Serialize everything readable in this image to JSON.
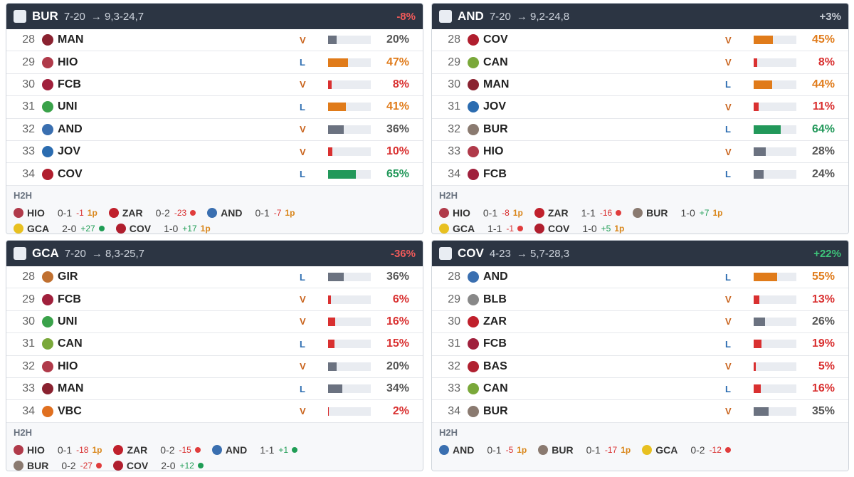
{
  "panels": [
    {
      "team": "BUR",
      "record": "7-20",
      "projection": "→ 9,3-24,7",
      "change": "-8%",
      "change_color": "#f05a5a",
      "rows": [
        {
          "round": 28,
          "team": "MAN",
          "venue": "V",
          "pct": 20,
          "pct_label": "20%"
        },
        {
          "round": 29,
          "team": "HIO",
          "venue": "L",
          "pct": 47,
          "pct_label": "47%"
        },
        {
          "round": 30,
          "team": "FCB",
          "venue": "V",
          "pct": 8,
          "pct_label": "8%"
        },
        {
          "round": 31,
          "team": "UNI",
          "venue": "L",
          "pct": 41,
          "pct_label": "41%"
        },
        {
          "round": 32,
          "team": "AND",
          "venue": "V",
          "pct": 36,
          "pct_label": "36%"
        },
        {
          "round": 33,
          "team": "JOV",
          "venue": "V",
          "pct": 10,
          "pct_label": "10%"
        },
        {
          "round": 34,
          "team": "COV",
          "venue": "L",
          "pct": 65,
          "pct_label": "65%"
        }
      ],
      "h2h_label": "H2H",
      "h2h": [
        [
          {
            "team": "HIO",
            "score": "0-1",
            "diff": "-1",
            "extra": "1p"
          },
          {
            "team": "ZAR",
            "score": "0-2",
            "diff": "-23",
            "dot": "#e03c3c"
          },
          {
            "team": "AND",
            "score": "0-1",
            "diff": "-7",
            "extra": "1p"
          }
        ],
        [
          {
            "team": "GCA",
            "score": "2-0",
            "diff": "+27",
            "dot": "#1f9d55"
          },
          {
            "team": "COV",
            "score": "1-0",
            "diff": "+17",
            "extra": "1p"
          }
        ]
      ]
    },
    {
      "team": "AND",
      "record": "7-20",
      "projection": "→ 9,2-24,8",
      "change": "+3%",
      "change_color": "#c9ced6",
      "rows": [
        {
          "round": 28,
          "team": "COV",
          "venue": "V",
          "pct": 45,
          "pct_label": "45%"
        },
        {
          "round": 29,
          "team": "CAN",
          "venue": "V",
          "pct": 8,
          "pct_label": "8%"
        },
        {
          "round": 30,
          "team": "MAN",
          "venue": "L",
          "pct": 44,
          "pct_label": "44%"
        },
        {
          "round": 31,
          "team": "JOV",
          "venue": "V",
          "pct": 11,
          "pct_label": "11%"
        },
        {
          "round": 32,
          "team": "BUR",
          "venue": "L",
          "pct": 64,
          "pct_label": "64%"
        },
        {
          "round": 33,
          "team": "HIO",
          "venue": "V",
          "pct": 28,
          "pct_label": "28%"
        },
        {
          "round": 34,
          "team": "FCB",
          "venue": "L",
          "pct": 24,
          "pct_label": "24%"
        }
      ],
      "h2h_label": "H2H",
      "h2h": [
        [
          {
            "team": "HIO",
            "score": "0-1",
            "diff": "-8",
            "extra": "1p"
          },
          {
            "team": "ZAR",
            "score": "1-1",
            "diff": "-16",
            "dot": "#e03c3c"
          },
          {
            "team": "BUR",
            "score": "1-0",
            "diff": "+7",
            "extra": "1p"
          }
        ],
        [
          {
            "team": "GCA",
            "score": "1-1",
            "diff": "-1",
            "dot": "#e03c3c"
          },
          {
            "team": "COV",
            "score": "1-0",
            "diff": "+5",
            "extra": "1p"
          }
        ]
      ]
    },
    {
      "team": "GCA",
      "record": "7-20",
      "projection": "→ 8,3-25,7",
      "change": "-36%",
      "change_color": "#f05a5a",
      "rows": [
        {
          "round": 28,
          "team": "GIR",
          "venue": "L",
          "pct": 36,
          "pct_label": "36%"
        },
        {
          "round": 29,
          "team": "FCB",
          "venue": "V",
          "pct": 6,
          "pct_label": "6%"
        },
        {
          "round": 30,
          "team": "UNI",
          "venue": "V",
          "pct": 16,
          "pct_label": "16%"
        },
        {
          "round": 31,
          "team": "CAN",
          "venue": "L",
          "pct": 15,
          "pct_label": "15%"
        },
        {
          "round": 32,
          "team": "HIO",
          "venue": "V",
          "pct": 20,
          "pct_label": "20%"
        },
        {
          "round": 33,
          "team": "MAN",
          "venue": "L",
          "pct": 34,
          "pct_label": "34%"
        },
        {
          "round": 34,
          "team": "VBC",
          "venue": "V",
          "pct": 2,
          "pct_label": "2%"
        }
      ],
      "h2h_label": "H2H",
      "h2h": [
        [
          {
            "team": "HIO",
            "score": "0-1",
            "diff": "-18",
            "extra": "1p"
          },
          {
            "team": "ZAR",
            "score": "0-2",
            "diff": "-15",
            "dot": "#e03c3c"
          },
          {
            "team": "AND",
            "score": "1-1",
            "diff": "+1",
            "dot": "#1f9d55"
          }
        ],
        [
          {
            "team": "BUR",
            "score": "0-2",
            "diff": "-27",
            "dot": "#e03c3c"
          },
          {
            "team": "COV",
            "score": "2-0",
            "diff": "+12",
            "dot": "#1f9d55"
          }
        ]
      ]
    },
    {
      "team": "COV",
      "record": "4-23",
      "projection": "→ 5,7-28,3",
      "change": "+22%",
      "change_color": "#3ec47a",
      "rows": [
        {
          "round": 28,
          "team": "AND",
          "venue": "L",
          "pct": 55,
          "pct_label": "55%"
        },
        {
          "round": 29,
          "team": "BLB",
          "venue": "V",
          "pct": 13,
          "pct_label": "13%"
        },
        {
          "round": 30,
          "team": "ZAR",
          "venue": "V",
          "pct": 26,
          "pct_label": "26%"
        },
        {
          "round": 31,
          "team": "FCB",
          "venue": "L",
          "pct": 19,
          "pct_label": "19%"
        },
        {
          "round": 32,
          "team": "BAS",
          "venue": "V",
          "pct": 5,
          "pct_label": "5%"
        },
        {
          "round": 33,
          "team": "CAN",
          "venue": "L",
          "pct": 16,
          "pct_label": "16%"
        },
        {
          "round": 34,
          "team": "BUR",
          "venue": "V",
          "pct": 35,
          "pct_label": "35%"
        }
      ],
      "h2h_label": "H2H",
      "h2h": [
        [
          {
            "team": "AND",
            "score": "0-1",
            "diff": "-5",
            "extra": "1p"
          },
          {
            "team": "BUR",
            "score": "0-1",
            "diff": "-17",
            "extra": "1p"
          },
          {
            "team": "GCA",
            "score": "0-2",
            "diff": "-12",
            "dot": "#e03c3c"
          }
        ]
      ]
    }
  ]
}
